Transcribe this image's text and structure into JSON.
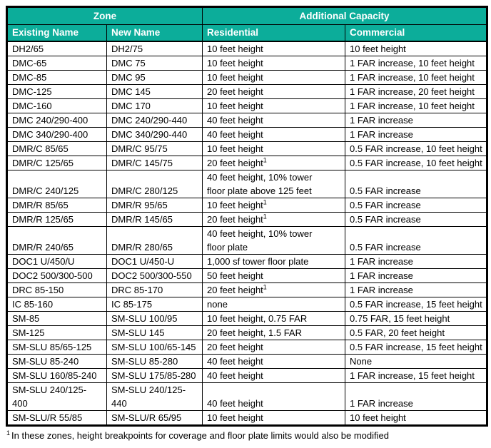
{
  "accent_color": "#0cad9a",
  "table": {
    "header_groups": [
      {
        "label": "Zone",
        "colspan": 2
      },
      {
        "label": "Additional Capacity",
        "colspan": 2
      }
    ],
    "columns": [
      "Existing Name",
      "New Name",
      "Residential",
      "Commercial"
    ],
    "rows": [
      {
        "existing": "DH2/65",
        "new": "DH2/75",
        "residential": "10 feet height",
        "commercial": "10 feet height"
      },
      {
        "existing": "DMC-65",
        "new": "DMC 75",
        "residential": "10 feet height",
        "commercial": "1 FAR increase, 10 feet height"
      },
      {
        "existing": "DMC-85",
        "new": "DMC 95",
        "residential": "10 feet height",
        "commercial": "1 FAR increase, 10 feet height"
      },
      {
        "existing": "DMC-125",
        "new": "DMC 145",
        "residential": "20 feet height",
        "commercial": "1 FAR increase, 20 feet height"
      },
      {
        "existing": "DMC-160",
        "new": "DMC 170",
        "residential": "10 feet height",
        "commercial": "1 FAR increase, 10 feet height"
      },
      {
        "existing": "DMC 240/290-400",
        "new": "DMC 240/290-440",
        "residential": "40 feet height",
        "commercial": "1 FAR increase"
      },
      {
        "existing": "DMC 340/290-400",
        "new": "DMC 340/290-440",
        "residential": "40 feet height",
        "commercial": "1 FAR increase"
      },
      {
        "existing": "DMR/C 85/65",
        "new": "DMR/C 95/75",
        "residential": "10 feet height",
        "commercial": "0.5 FAR increase, 10 feet height"
      },
      {
        "existing": "DMR/C 125/65",
        "new": "DMR/C 145/75",
        "residential": "20 feet height",
        "residential_sup": "1",
        "commercial": "0.5 FAR increase, 10 feet height"
      },
      {
        "existing": "DMR/C 240/125",
        "new": "DMR/C 280/125",
        "residential": [
          "40 feet height, 10% tower",
          "floor plate above 125 feet"
        ],
        "commercial": "0.5 FAR increase"
      },
      {
        "existing": "DMR/R 85/65",
        "new": "DMR/R 95/65",
        "residential": "10 feet height",
        "residential_sup": "1",
        "commercial": "0.5 FAR increase"
      },
      {
        "existing": "DMR/R 125/65",
        "new": "DMR/R 145/65",
        "residential": "20 feet height",
        "residential_sup": "1",
        "commercial": "0.5 FAR increase"
      },
      {
        "existing": "DMR/R 240/65",
        "new": "DMR/R 280/65",
        "residential": [
          "40 feet height, 10% tower",
          "floor plate"
        ],
        "commercial": "0.5 FAR increase"
      },
      {
        "existing": "DOC1 U/450/U",
        "new": "DOC1 U/450-U",
        "residential": "1,000 sf tower floor plate",
        "commercial": "1 FAR increase"
      },
      {
        "existing": "DOC2 500/300-500",
        "new": "DOC2 500/300-550",
        "residential": "50 feet height",
        "commercial": "1 FAR increase"
      },
      {
        "existing": "DRC 85-150",
        "new": "DRC 85-170",
        "residential": "20 feet height",
        "residential_sup": "1",
        "commercial": "1 FAR increase"
      },
      {
        "existing": "IC 85-160",
        "new": "IC 85-175",
        "residential": "none",
        "commercial": "0.5 FAR increase, 15 feet height"
      },
      {
        "existing": "SM-85",
        "new": "SM-SLU 100/95",
        "residential": "10 feet height, 0.75 FAR",
        "commercial": "0.75 FAR, 15 feet height"
      },
      {
        "existing": "SM-125",
        "new": "SM-SLU 145",
        "residential": "20 feet height, 1.5 FAR",
        "commercial": "0.5 FAR, 20 feet height"
      },
      {
        "existing": "SM-SLU 85/65-125",
        "new": "SM-SLU 100/65-145",
        "residential": "20 feet height",
        "commercial": "0.5 FAR increase, 15 feet height"
      },
      {
        "existing": "SM-SLU 85-240",
        "new": "SM-SLU 85-280",
        "residential": "40 feet height",
        "commercial": "None"
      },
      {
        "existing": "SM-SLU 160/85-240",
        "new": "SM-SLU 175/85-280",
        "residential": "40 feet height",
        "commercial": "1 FAR increase, 15 feet height"
      },
      {
        "existing": [
          "SM-SLU 240/125-",
          "400"
        ],
        "new": [
          "SM-SLU 240/125-",
          "440"
        ],
        "residential": "40 feet height",
        "commercial": "1 FAR increase"
      },
      {
        "existing": "SM-SLU/R 55/85",
        "new": "SM-SLU/R 65/95",
        "residential": "10 feet height",
        "commercial": "10 feet height"
      }
    ],
    "footnote": {
      "marker": "1",
      "text": "In these zones, height breakpoints for coverage and floor plate limits would also be modified"
    }
  }
}
